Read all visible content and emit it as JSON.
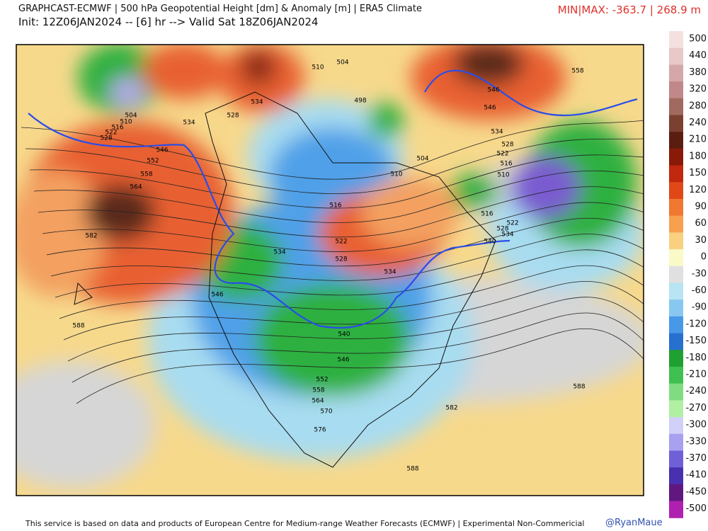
{
  "header": {
    "title": "GRAPHCAST-ECMWF | 500 hPa Geopotential Height [dm] & Anomaly [m] | ERA5 Climate",
    "init": "Init: 12Z06JAN2024 -- [6] hr --> Valid Sat 18Z06JAN2024",
    "minmax": "MIN|MAX: -363.7 | 268.9 m"
  },
  "colorbar": {
    "labels": [
      500,
      440,
      380,
      320,
      280,
      240,
      210,
      180,
      150,
      120,
      90,
      60,
      30,
      0,
      -30,
      -60,
      -90,
      -120,
      -150,
      -180,
      -210,
      -240,
      -270,
      -300,
      -330,
      -370,
      -410,
      -450,
      -500
    ],
    "colors": [
      "#f5e0e0",
      "#e8c8c8",
      "#d4a8a8",
      "#c08888",
      "#a06a60",
      "#7a4030",
      "#5a1e10",
      "#8a1a08",
      "#c02810",
      "#e04818",
      "#f07830",
      "#f8a050",
      "#f8d080",
      "#fafac8",
      "#e0e0e0",
      "#b8e4f4",
      "#88c8f0",
      "#4898e8",
      "#2870d0",
      "#20a030",
      "#40c050",
      "#80dc80",
      "#b0f0a0",
      "#d0d0f8",
      "#a8a0f0",
      "#7060d8",
      "#4830b0",
      "#601880",
      "#b020b0"
    ]
  },
  "contour_labels": [
    "510",
    "504",
    "534",
    "528",
    "534",
    "504",
    "510",
    "516",
    "522",
    "528",
    "546",
    "552",
    "558",
    "564",
    "582",
    "588",
    "498",
    "510",
    "504",
    "516",
    "522",
    "528",
    "534",
    "534",
    "546",
    "540",
    "546",
    "552",
    "558",
    "564",
    "570",
    "576",
    "582",
    "588",
    "588",
    "558",
    "546",
    "546",
    "534",
    "528",
    "522",
    "516",
    "510",
    "516",
    "522",
    "528",
    "534",
    "540"
  ],
  "footer": "This service is based on data and products of European Centre for Medium-range Weather Forecasts (ECMWF) | Experimental Non-Commericial",
  "credit": "@RyanMaue"
}
